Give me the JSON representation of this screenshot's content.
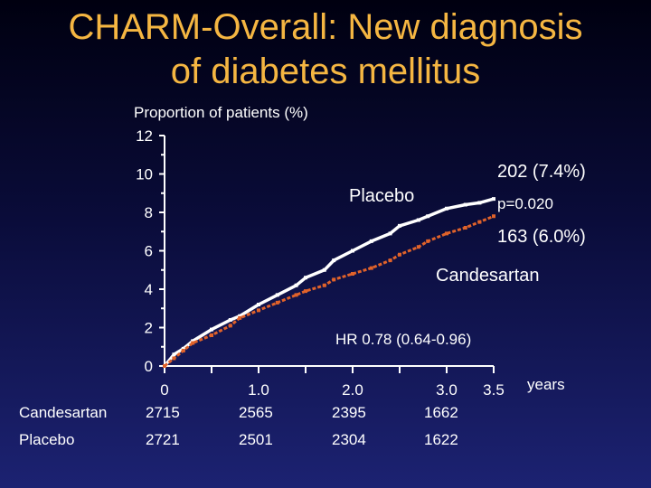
{
  "title": {
    "line1": "CHARM-Overall: New diagnosis",
    "line2": "of diabetes mellitus"
  },
  "colors": {
    "title": "#f5b642",
    "placebo": "#ffffff",
    "candesartan": "#e0622a",
    "text": "#ffffff"
  },
  "chart_data": {
    "type": "line",
    "ylabel": "Proportion of patients (%)",
    "xlabel": "years",
    "ylim": [
      0,
      12
    ],
    "xlim": [
      0,
      3.5
    ],
    "y_ticks": [
      0,
      2,
      4,
      6,
      8,
      10,
      12
    ],
    "y_tick_labels": [
      "0",
      "2",
      "4",
      "6",
      "8",
      "10",
      "12"
    ],
    "x_ticks": [
      0,
      0.5,
      1.0,
      1.5,
      2.0,
      2.5,
      3.0,
      3.5
    ],
    "x_tick_labels": [
      {
        "x": 0,
        "label": "0"
      },
      {
        "x": 1.0,
        "label": "1.0"
      },
      {
        "x": 2.0,
        "label": "2.0"
      },
      {
        "x": 3.0,
        "label": "3.0"
      },
      {
        "x": 3.5,
        "label": "3.5"
      }
    ],
    "series": [
      {
        "name": "Placebo",
        "end_label": "202 (7.4%)",
        "x": [
          0,
          0.1,
          0.2,
          0.3,
          0.5,
          0.7,
          0.8,
          1.0,
          1.2,
          1.4,
          1.5,
          1.7,
          1.8,
          2.0,
          2.2,
          2.4,
          2.5,
          2.7,
          2.8,
          3.0,
          3.2,
          3.35,
          3.5
        ],
        "y": [
          0,
          0.6,
          0.9,
          1.3,
          1.9,
          2.4,
          2.6,
          3.2,
          3.7,
          4.2,
          4.6,
          5.0,
          5.5,
          6.0,
          6.5,
          6.9,
          7.3,
          7.6,
          7.8,
          8.2,
          8.4,
          8.5,
          8.7
        ]
      },
      {
        "name": "Candesartan",
        "end_label": "163 (6.0%)",
        "x": [
          0,
          0.1,
          0.2,
          0.3,
          0.5,
          0.7,
          0.8,
          1.0,
          1.2,
          1.4,
          1.5,
          1.7,
          1.8,
          2.0,
          2.2,
          2.4,
          2.5,
          2.7,
          2.8,
          3.0,
          3.2,
          3.35,
          3.5
        ],
        "y": [
          0,
          0.4,
          0.8,
          1.2,
          1.6,
          2.1,
          2.5,
          2.9,
          3.3,
          3.7,
          3.9,
          4.2,
          4.5,
          4.8,
          5.1,
          5.5,
          5.8,
          6.2,
          6.5,
          6.9,
          7.2,
          7.5,
          7.8
        ]
      }
    ],
    "annotations": {
      "p_value": "p=0.020",
      "hazard_ratio": "HR 0.78 (0.64-0.96)"
    },
    "numbers_at_risk": {
      "years": [
        "0",
        "1.0",
        "2.0",
        "3.0"
      ],
      "rows": [
        {
          "label": "Candesartan",
          "values": [
            "2715",
            "2565",
            "2395",
            "1662"
          ]
        },
        {
          "label": "Placebo",
          "values": [
            "2721",
            "2501",
            "2304",
            "1622"
          ]
        }
      ]
    }
  }
}
